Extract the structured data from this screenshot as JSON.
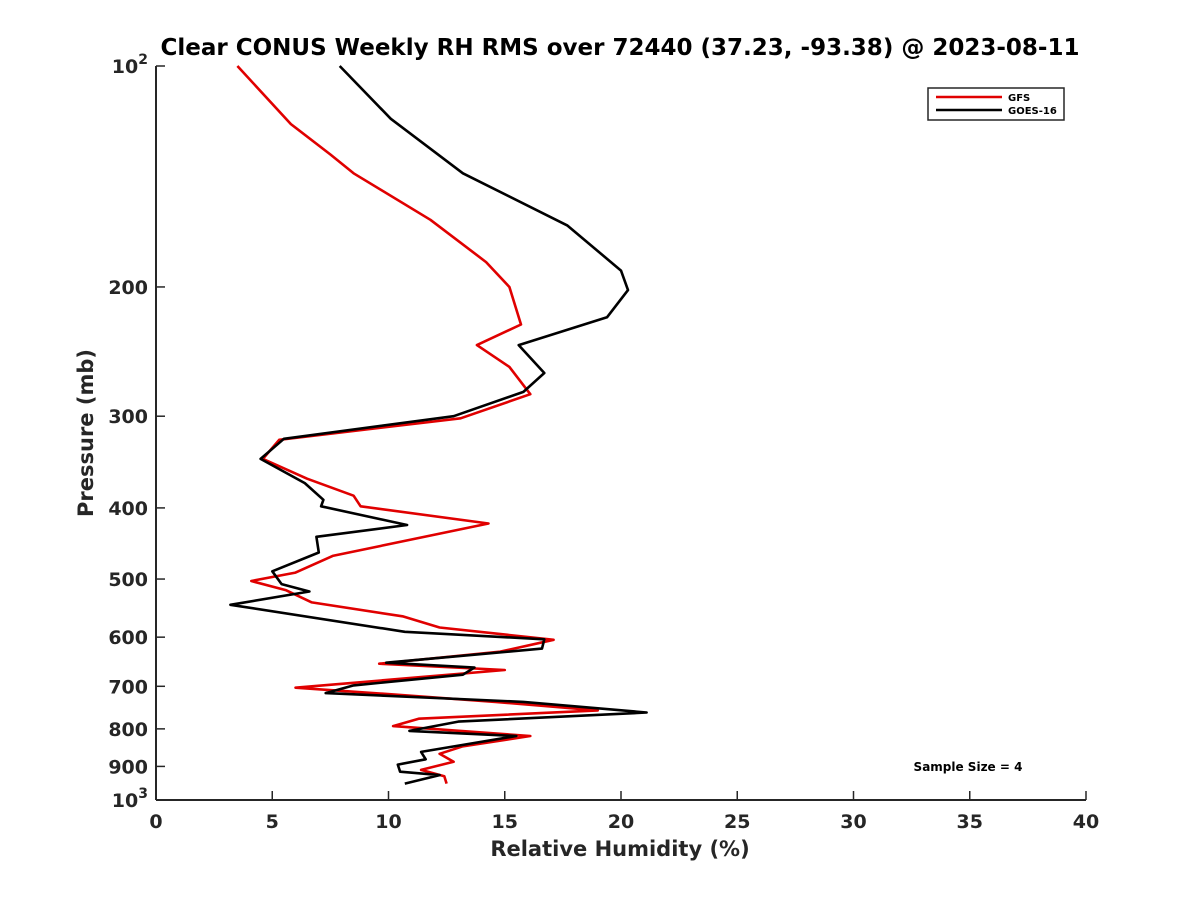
{
  "chart_data": {
    "type": "line",
    "title": "Clear CONUS Weekly RH RMS over 72440 (37.23, -93.38) @ 2023-08-11",
    "xlabel": "Relative Humidity (%)",
    "ylabel": "Pressure (mb)",
    "xlim": [
      0,
      40
    ],
    "ylim": [
      100,
      1000
    ],
    "yscale": "log",
    "y_reversed": true,
    "grid": false,
    "legend_position": "top-right",
    "x_ticks": [
      0,
      5,
      10,
      15,
      20,
      25,
      30,
      35,
      40
    ],
    "x_tick_labels": [
      "0",
      "5",
      "10",
      "15",
      "20",
      "25",
      "30",
      "35",
      "40"
    ],
    "y_ticks": [
      100,
      200,
      300,
      400,
      500,
      600,
      700,
      800,
      900,
      1000
    ],
    "y_tick_labels": [
      "10^2",
      "200",
      "300",
      "400",
      "500",
      "600",
      "700",
      "800",
      "900",
      "10^3"
    ],
    "series": [
      {
        "name": "GFS",
        "color": "#e00000",
        "points": [
          [
            3.5,
            100
          ],
          [
            5.8,
            120
          ],
          [
            7.5,
            132
          ],
          [
            8.5,
            140
          ],
          [
            11.8,
            162
          ],
          [
            14.2,
            185
          ],
          [
            15.2,
            200
          ],
          [
            15.7,
            225
          ],
          [
            13.8,
            240
          ],
          [
            15.2,
            257
          ],
          [
            16.1,
            280
          ],
          [
            13.1,
            302
          ],
          [
            5.3,
            323
          ],
          [
            4.6,
            343
          ],
          [
            6.5,
            365
          ],
          [
            8.5,
            385
          ],
          [
            8.8,
            398
          ],
          [
            14.3,
            420
          ],
          [
            7.6,
            465
          ],
          [
            6.0,
            490
          ],
          [
            4.1,
            503
          ],
          [
            5.6,
            518
          ],
          [
            6.7,
            538
          ],
          [
            10.6,
            562
          ],
          [
            12.2,
            582
          ],
          [
            17.1,
            605
          ],
          [
            14.8,
            628
          ],
          [
            9.6,
            652
          ],
          [
            15.0,
            665
          ],
          [
            11.4,
            680
          ],
          [
            6.0,
            703
          ],
          [
            10.2,
            718
          ],
          [
            14.6,
            735
          ],
          [
            19.0,
            755
          ],
          [
            11.3,
            775
          ],
          [
            10.2,
            793
          ],
          [
            16.1,
            818
          ],
          [
            13.2,
            845
          ],
          [
            12.2,
            865
          ],
          [
            12.8,
            887
          ],
          [
            11.4,
            910
          ],
          [
            12.4,
            928
          ],
          [
            12.5,
            950
          ]
        ]
      },
      {
        "name": "GOES-16",
        "color": "#000000",
        "points": [
          [
            7.9,
            100
          ],
          [
            10.1,
            118
          ],
          [
            13.2,
            140
          ],
          [
            17.7,
            165
          ],
          [
            20.0,
            190
          ],
          [
            20.3,
            202
          ],
          [
            19.4,
            220
          ],
          [
            15.6,
            240
          ],
          [
            16.7,
            262
          ],
          [
            15.8,
            278
          ],
          [
            12.8,
            300
          ],
          [
            5.5,
            322
          ],
          [
            4.5,
            343
          ],
          [
            6.4,
            370
          ],
          [
            7.2,
            390
          ],
          [
            7.1,
            398
          ],
          [
            10.8,
            422
          ],
          [
            6.9,
            438
          ],
          [
            7.0,
            460
          ],
          [
            5.0,
            488
          ],
          [
            5.4,
            508
          ],
          [
            6.6,
            520
          ],
          [
            3.2,
            542
          ],
          [
            10.7,
            590
          ],
          [
            16.7,
            604
          ],
          [
            16.6,
            622
          ],
          [
            9.9,
            650
          ],
          [
            13.7,
            660
          ],
          [
            13.2,
            675
          ],
          [
            8.5,
            698
          ],
          [
            7.3,
            715
          ],
          [
            15.8,
            735
          ],
          [
            21.1,
            760
          ],
          [
            13.0,
            782
          ],
          [
            10.9,
            805
          ],
          [
            15.5,
            818
          ],
          [
            11.4,
            860
          ],
          [
            11.6,
            880
          ],
          [
            10.4,
            895
          ],
          [
            10.5,
            915
          ],
          [
            12.2,
            925
          ],
          [
            10.7,
            950
          ]
        ]
      }
    ],
    "annotations": [
      "Sample Size = 4"
    ]
  }
}
